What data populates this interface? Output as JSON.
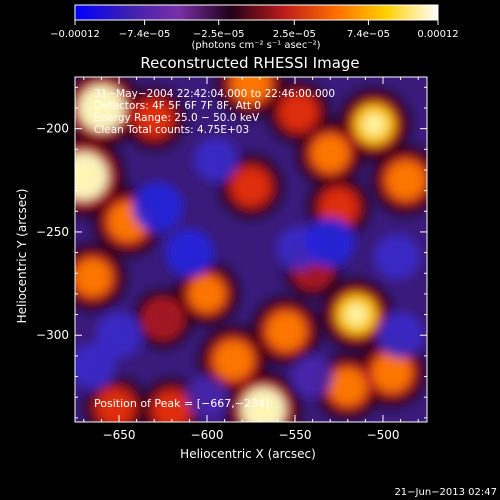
{
  "chart_data": {
    "type": "heatmap",
    "title": "Reconstructed RHESSI Image",
    "xlabel": "Heliocentric X (arcsec)",
    "ylabel": "Heliocentric Y (arcsec)",
    "xlim": [
      -675,
      -475
    ],
    "ylim": [
      -342,
      -175
    ],
    "x_ticks": [
      -650,
      -600,
      -550,
      -500
    ],
    "x_tick_labels": [
      "−650",
      "−600",
      "−550",
      "−500"
    ],
    "y_ticks": [
      -300,
      -250,
      -200
    ],
    "y_tick_labels": [
      "−300",
      "−250",
      "−200"
    ],
    "colorbar": {
      "min": -0.00012,
      "max": 0.00012,
      "tick_values": [
        -0.00012,
        -7.4e-05,
        -2.5e-05,
        2.5e-05,
        7.4e-05,
        0.00012
      ],
      "tick_labels": [
        "−0.00012",
        "−7.4e−05",
        "−2.5e−05",
        "2.5e−05",
        "7.4e−05",
        "0.00012"
      ],
      "unit_label": "(photons cm⁻² s⁻¹ asec⁻²)",
      "colors": [
        "#0000ff",
        "#3a1fb0",
        "#7a2fa8",
        "#200018",
        "#b81a1a",
        "#ff6a00",
        "#ffd000",
        "#ffffff"
      ]
    },
    "annotations": [
      "31−May−2004 22:42:04.000 to 22:46:00.000",
      "Detectors: 4F 5F 6F 7F 8F, Att 0",
      "Energy Range: 25.0 − 50.0 keV",
      "Clean    Total counts: 4.75E+03"
    ],
    "peak": {
      "label": "Position of Peak = [−667,−234]",
      "x": -667,
      "y": -234
    },
    "blobs": [
      {
        "x": -660,
        "y": -190,
        "v": 1.2
      },
      {
        "x": -670,
        "y": -223,
        "v": 1.3
      },
      {
        "x": -645,
        "y": -245,
        "v": 0.8
      },
      {
        "x": -665,
        "y": -272,
        "v": 0.7
      },
      {
        "x": -630,
        "y": -195,
        "v": 0.5
      },
      {
        "x": -575,
        "y": -178,
        "v": 0.8
      },
      {
        "x": -548,
        "y": -192,
        "v": 0.5
      },
      {
        "x": -505,
        "y": -198,
        "v": 0.9
      },
      {
        "x": -530,
        "y": -212,
        "v": 0.7
      },
      {
        "x": -487,
        "y": -225,
        "v": 0.8
      },
      {
        "x": -525,
        "y": -238,
        "v": 0.5
      },
      {
        "x": -575,
        "y": -228,
        "v": 0.55
      },
      {
        "x": -600,
        "y": -280,
        "v": 0.6
      },
      {
        "x": -555,
        "y": -298,
        "v": 0.8
      },
      {
        "x": -515,
        "y": -290,
        "v": 0.9
      },
      {
        "x": -585,
        "y": -312,
        "v": 0.8
      },
      {
        "x": -568,
        "y": -336,
        "v": 1.1
      },
      {
        "x": -520,
        "y": -325,
        "v": 0.7
      },
      {
        "x": -495,
        "y": -318,
        "v": 0.8
      },
      {
        "x": -620,
        "y": -336,
        "v": 0.5
      },
      {
        "x": -652,
        "y": -335,
        "v": 0.5
      },
      {
        "x": -625,
        "y": -292,
        "v": 0.35
      },
      {
        "x": -540,
        "y": -268,
        "v": 0.3
      },
      {
        "x": -628,
        "y": -238,
        "v": -0.9
      },
      {
        "x": -595,
        "y": -215,
        "v": -0.6
      },
      {
        "x": -650,
        "y": -300,
        "v": -0.7
      },
      {
        "x": -610,
        "y": -260,
        "v": -0.8
      },
      {
        "x": -548,
        "y": -258,
        "v": -0.6
      },
      {
        "x": -530,
        "y": -255,
        "v": -0.85
      },
      {
        "x": -492,
        "y": -262,
        "v": -0.7
      },
      {
        "x": -490,
        "y": -300,
        "v": -0.7
      },
      {
        "x": -600,
        "y": -330,
        "v": -0.5
      },
      {
        "x": -665,
        "y": -315,
        "v": -0.7
      },
      {
        "x": -540,
        "y": -320,
        "v": -0.5
      }
    ]
  },
  "footer": {
    "timestamp": "21−Jun−2013 02:47"
  }
}
